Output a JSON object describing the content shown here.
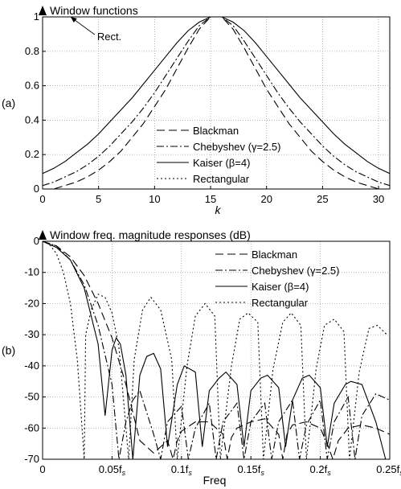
{
  "chart_data": [
    {
      "panel_label": "(a)",
      "type": "line",
      "title": "Window functions",
      "xlabel": "k",
      "ylabel": "",
      "xlim": [
        0,
        31
      ],
      "ylim": [
        0,
        1
      ],
      "xticks": [
        0,
        5,
        10,
        15,
        20,
        25,
        30
      ],
      "yticks": [
        0,
        0.2,
        0.4,
        0.6,
        0.8,
        1
      ],
      "ytick_labels": [
        "0",
        "0.2",
        "0.4",
        "0.6",
        "0.8",
        "1"
      ],
      "grid": true,
      "legend_position": "bottom-right",
      "annotation": "Rect.",
      "x": [
        0,
        1,
        2,
        3,
        4,
        5,
        6,
        7,
        8,
        9,
        10,
        11,
        12,
        13,
        14,
        15,
        16,
        17,
        18,
        19,
        20,
        21,
        22,
        23,
        24,
        25,
        26,
        27,
        28,
        29,
        30,
        31
      ],
      "series": [
        {
          "name": "Blackman",
          "dash": "longdash",
          "values": [
            0.0,
            0.0,
            0.02,
            0.04,
            0.07,
            0.11,
            0.16,
            0.22,
            0.3,
            0.38,
            0.48,
            0.58,
            0.7,
            0.82,
            0.93,
            1.0,
            1.0,
            0.93,
            0.82,
            0.7,
            0.58,
            0.48,
            0.38,
            0.3,
            0.22,
            0.16,
            0.11,
            0.07,
            0.04,
            0.02,
            0.0,
            0.0
          ]
        },
        {
          "name": "Chebyshev (γ=2.5)",
          "dash": "dashdot",
          "values": [
            0.02,
            0.04,
            0.07,
            0.1,
            0.14,
            0.19,
            0.25,
            0.32,
            0.39,
            0.47,
            0.56,
            0.66,
            0.76,
            0.86,
            0.95,
            1.0,
            1.0,
            0.95,
            0.86,
            0.76,
            0.66,
            0.56,
            0.47,
            0.39,
            0.32,
            0.25,
            0.19,
            0.14,
            0.1,
            0.07,
            0.04,
            0.02
          ]
        },
        {
          "name": "Kaiser (β=4)",
          "dash": "solid",
          "values": [
            0.09,
            0.12,
            0.16,
            0.21,
            0.26,
            0.32,
            0.39,
            0.46,
            0.53,
            0.61,
            0.69,
            0.77,
            0.85,
            0.92,
            0.97,
            1.0,
            1.0,
            0.97,
            0.92,
            0.85,
            0.77,
            0.69,
            0.61,
            0.53,
            0.46,
            0.39,
            0.32,
            0.26,
            0.21,
            0.16,
            0.12,
            0.09
          ]
        },
        {
          "name": "Rectangular",
          "dash": "dotted",
          "values": [
            1,
            1,
            1,
            1,
            1,
            1,
            1,
            1,
            1,
            1,
            1,
            1,
            1,
            1,
            1,
            1,
            1,
            1,
            1,
            1,
            1,
            1,
            1,
            1,
            1,
            1,
            1,
            1,
            1,
            1,
            1,
            1
          ]
        }
      ]
    },
    {
      "panel_label": "(b)",
      "type": "line",
      "title": "Window freq. magnitude responses (dB)",
      "xlabel": "Freq",
      "ylabel": "",
      "xlim": [
        0,
        0.25
      ],
      "ylim": [
        -70,
        0
      ],
      "xticks": [
        0,
        0.05,
        0.1,
        0.15,
        0.2,
        0.25
      ],
      "xtick_labels": [
        "0",
        "0.05f",
        "0.1f",
        "0.15f",
        "0.2f",
        "0.25f"
      ],
      "xtick_subscript": "s",
      "yticks": [
        0,
        -10,
        -20,
        -30,
        -40,
        -50,
        -60,
        -70
      ],
      "grid": true,
      "legend_position": "top-right",
      "series": [
        {
          "name": "Blackman",
          "dash": "longdash",
          "x": [
            0,
            0.01,
            0.02,
            0.03,
            0.04,
            0.05,
            0.06,
            0.07,
            0.08,
            0.09,
            0.094,
            0.097,
            0.1,
            0.11,
            0.12,
            0.13,
            0.133,
            0.136,
            0.14,
            0.15,
            0.16,
            0.17,
            0.173,
            0.176,
            0.18,
            0.19,
            0.2,
            0.205,
            0.209,
            0.213,
            0.22,
            0.23,
            0.24,
            0.25
          ],
          "values": [
            0,
            -1.5,
            -5,
            -11,
            -20,
            -31,
            -46,
            -64,
            -68,
            -64,
            -70,
            -64,
            -61,
            -58,
            -58,
            -62,
            -70,
            -63,
            -60,
            -58,
            -57,
            -62,
            -70,
            -62,
            -59,
            -58,
            -60,
            -65,
            -70,
            -64,
            -60,
            -59,
            -60,
            -62
          ]
        },
        {
          "name": "Chebyshev (γ=2.5)",
          "dash": "dashdot",
          "x": [
            0,
            0.01,
            0.02,
            0.03,
            0.04,
            0.05,
            0.055,
            0.06,
            0.065,
            0.07,
            0.08,
            0.085,
            0.09,
            0.1,
            0.105,
            0.11,
            0.12,
            0.125,
            0.13,
            0.14,
            0.145,
            0.15,
            0.16,
            0.165,
            0.17,
            0.18,
            0.185,
            0.19,
            0.2,
            0.205,
            0.21,
            0.22,
            0.225,
            0.23,
            0.24,
            0.25
          ],
          "values": [
            0,
            -1.5,
            -6,
            -14,
            -27,
            -46,
            -70,
            -58,
            -51,
            -48,
            -62,
            -70,
            -58,
            -53,
            -70,
            -60,
            -52,
            -70,
            -58,
            -52,
            -70,
            -58,
            -52,
            -70,
            -58,
            -51,
            -70,
            -59,
            -51,
            -70,
            -58,
            -50,
            -70,
            -56,
            -49,
            -51
          ]
        },
        {
          "name": "Kaiser (β=4)",
          "dash": "solid",
          "x": [
            0,
            0.01,
            0.02,
            0.03,
            0.04,
            0.045,
            0.05,
            0.053,
            0.056,
            0.06,
            0.065,
            0.07,
            0.075,
            0.08,
            0.085,
            0.09,
            0.097,
            0.102,
            0.11,
            0.115,
            0.12,
            0.127,
            0.132,
            0.14,
            0.145,
            0.15,
            0.157,
            0.162,
            0.17,
            0.175,
            0.18,
            0.187,
            0.192,
            0.2,
            0.205,
            0.21,
            0.218,
            0.222,
            0.23,
            0.24,
            0.247
          ],
          "values": [
            0,
            -2,
            -6,
            -15,
            -33,
            -56,
            -35,
            -31,
            -33,
            -43,
            -70,
            -43,
            -37,
            -36,
            -41,
            -66,
            -46,
            -40,
            -42,
            -66,
            -48,
            -44,
            -42,
            -46,
            -66,
            -48,
            -44,
            -43,
            -47,
            -66,
            -51,
            -44,
            -43,
            -47,
            -66,
            -52,
            -46,
            -45,
            -46,
            -58,
            -70
          ]
        },
        {
          "name": "Rectangular",
          "dash": "dotted",
          "x": [
            0,
            0.005,
            0.01,
            0.015,
            0.02,
            0.025,
            0.03,
            0.031,
            0.035,
            0.04,
            0.045,
            0.05,
            0.055,
            0.062,
            0.066,
            0.072,
            0.078,
            0.085,
            0.093,
            0.097,
            0.104,
            0.11,
            0.117,
            0.124,
            0.128,
            0.136,
            0.142,
            0.148,
            0.155,
            0.159,
            0.166,
            0.173,
            0.179,
            0.186,
            0.19,
            0.197,
            0.203,
            0.21,
            0.217,
            0.221,
            0.228,
            0.235,
            0.241,
            0.248
          ],
          "values": [
            0,
            -1,
            -4,
            -10,
            -20,
            -38,
            -70,
            -30,
            -22,
            -17,
            -18,
            -23,
            -34,
            -70,
            -38,
            -22,
            -18,
            -22,
            -38,
            -70,
            -40,
            -24,
            -20,
            -24,
            -70,
            -40,
            -25,
            -23,
            -26,
            -70,
            -41,
            -26,
            -23,
            -27,
            -70,
            -41,
            -27,
            -25,
            -29,
            -70,
            -42,
            -28,
            -27,
            -30
          ]
        }
      ]
    }
  ]
}
